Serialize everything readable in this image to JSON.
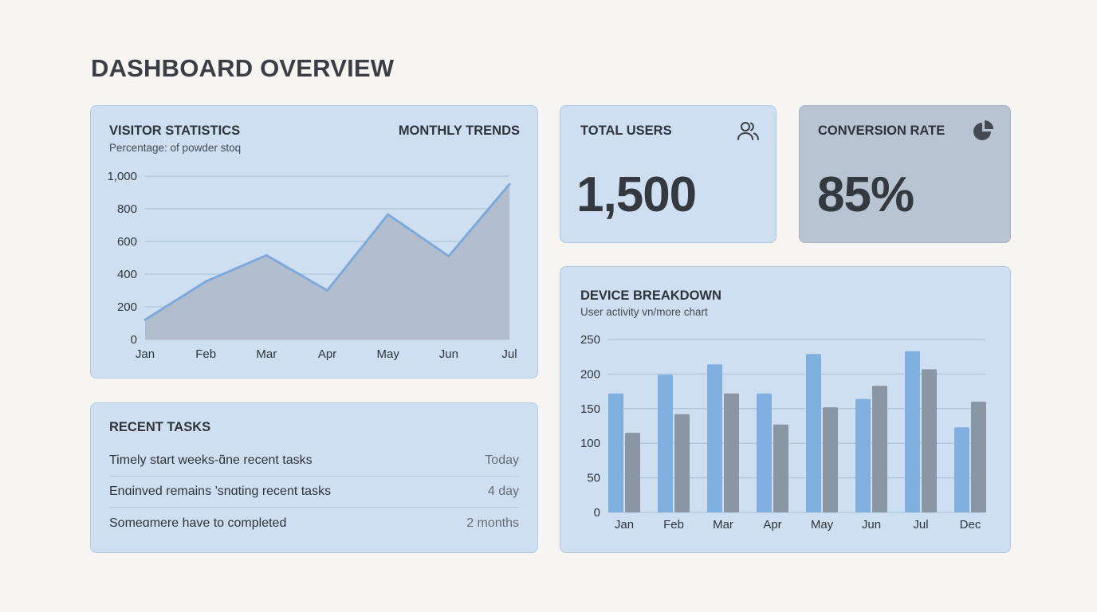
{
  "page": {
    "title": "DASHBOARD OVERVIEW"
  },
  "visitor_card": {
    "title": "VISITOR STATISTICS",
    "subtitle": "Percentage: of powder stoq",
    "right_label": "MONTHLY TRENDS"
  },
  "tasks_card": {
    "title": "RECENT TASKS",
    "items": [
      {
        "text": "Timely start weeks-ɑ̃ne recent tasks",
        "when": "Today"
      },
      {
        "text": "Enɑinved remains ’snɑting recent tasks",
        "when": "4 day"
      },
      {
        "text": "Someɑmere have to completed",
        "when": "2 months"
      }
    ]
  },
  "users_card": {
    "title": "TOTAL USERS",
    "value": "1,500",
    "icon": "users-icon"
  },
  "conversion_card": {
    "title": "CONVERSION RATE",
    "value": "85%",
    "icon": "pie-chart-icon"
  },
  "device_card": {
    "title": "DEVICE BREAKDOWN",
    "subtitle": "User activity vn/more chart"
  },
  "colors": {
    "background": "#f7f5f1",
    "card": "#cddff0",
    "card_dark": "#b7c3d0",
    "series_blue": "#7fb0e0",
    "series_gray": "#8a96a4",
    "area_fill": "#b0bccb",
    "line": "#7eaadb"
  },
  "chart_data": [
    {
      "type": "area",
      "title": "VISITOR STATISTICS",
      "categories": [
        "Jan",
        "Feb",
        "Mar",
        "Apr",
        "May",
        "Jun",
        "Jul"
      ],
      "values": [
        120,
        355,
        515,
        300,
        765,
        510,
        950
      ],
      "ylim": [
        0,
        1000
      ],
      "yticks": [
        "0",
        "200",
        "400",
        "600",
        "800",
        "1,000"
      ],
      "grid": true
    },
    {
      "type": "bar",
      "title": "DEVICE BREAKDOWN",
      "categories": [
        "Jan",
        "Feb",
        "Mar",
        "Apr",
        "May",
        "Jun",
        "Jul",
        "Dec"
      ],
      "series": [
        {
          "values": [
            172,
            199,
            214,
            172,
            229,
            164,
            233,
            123
          ]
        },
        {
          "values": [
            115,
            142,
            172,
            127,
            152,
            183,
            207,
            160
          ]
        }
      ],
      "ylim": [
        0,
        250
      ],
      "yticks": [
        "0",
        "50",
        "100",
        "150",
        "200",
        "250"
      ],
      "grid": true
    }
  ]
}
